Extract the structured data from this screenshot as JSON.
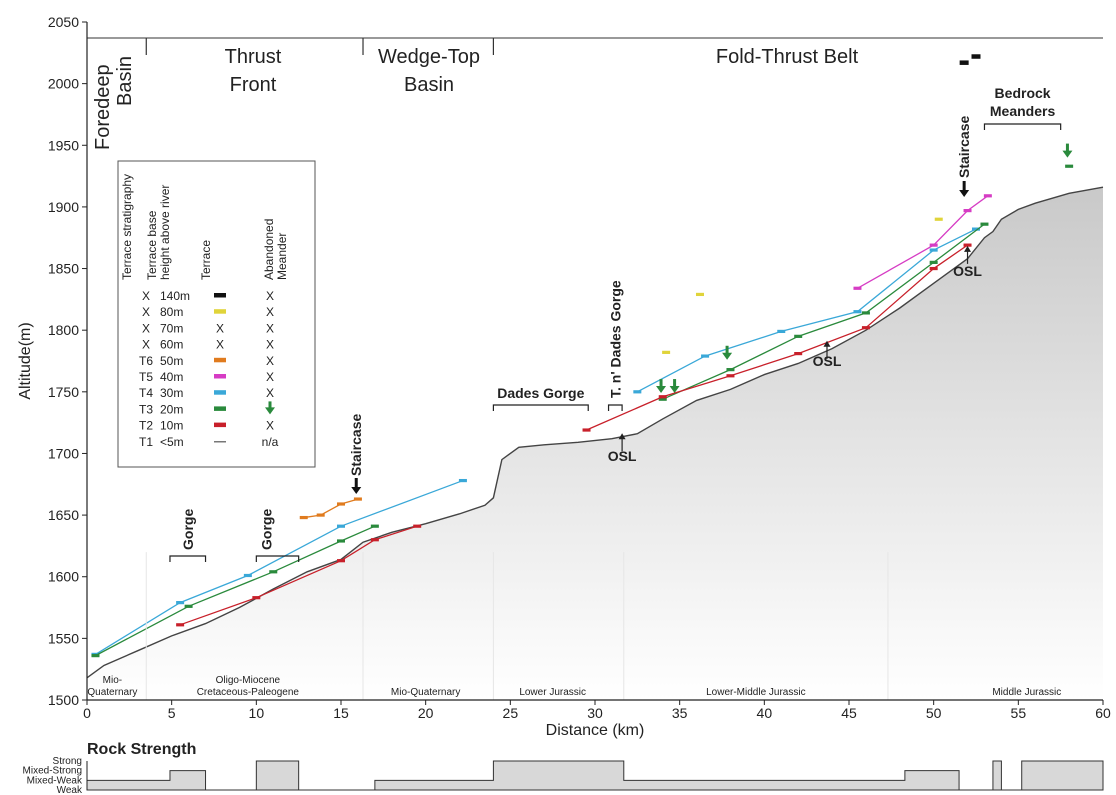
{
  "chart_data": {
    "type": "line",
    "xlabel": "Distance (km)",
    "ylabel": "Altitude(m)",
    "xlim": [
      0,
      60
    ],
    "ylim": [
      1500,
      2050
    ],
    "xticks": [
      0,
      5,
      10,
      15,
      20,
      25,
      30,
      35,
      40,
      45,
      50,
      55,
      60
    ],
    "yticks": [
      1500,
      1550,
      1600,
      1650,
      1700,
      1750,
      1800,
      1850,
      1900,
      1950,
      2000,
      2050
    ],
    "colors": {
      "T6": "#e07b1e",
      "T5": "#d63cc4",
      "T4": "#3aa8d8",
      "T3": "#2a8a3c",
      "T2": "#c8202a",
      "T1": "#555555",
      "80m": "#e0d43a",
      "140m": "#111111",
      "profile": "#444444",
      "fill": "#d6d6d6"
    },
    "regions": [
      {
        "label": "Foredeep Basin",
        "from": 0,
        "to": 3.5
      },
      {
        "label": "Thrust Front",
        "from": 3.5,
        "to": 16.3
      },
      {
        "label": "Wedge-Top Basin",
        "from": 16.3,
        "to": 24
      },
      {
        "label": "Fold-Thrust Belt",
        "from": 24,
        "to": 60
      }
    ],
    "annotations": {
      "gorge1": "Gorge",
      "gorge2": "Gorge",
      "staircase1": "Staircase",
      "staircase2": "Staircase",
      "dades": "Dades Gorge",
      "tndades": "T. n' Dades Gorge",
      "bedrock": "Bedrock Meanders",
      "osl": "OSL"
    },
    "geology": [
      {
        "label1": "Mio-",
        "label2": "Quaternary",
        "x": 1.5
      },
      {
        "label1": "Oligo-Miocene",
        "label2": "Cretaceous-Paleogene",
        "x": 9.5
      },
      {
        "label1": "Mio-Quaternary",
        "label2": "",
        "x": 20
      },
      {
        "label1": "Lower Jurassic",
        "label2": "",
        "x": 27.5
      },
      {
        "label1": "Lower-Middle Jurassic",
        "label2": "",
        "x": 39.5
      },
      {
        "label1": "Middle Jurassic",
        "label2": "",
        "x": 55.5
      }
    ],
    "legend": {
      "headers": [
        "Terrace stratigraphy",
        "Terrace base height above river",
        "Terrace",
        "Abandoned Meander"
      ],
      "rows": [
        {
          "strat": "X",
          "height": "140m",
          "terrace": "swatch",
          "color": "#111111",
          "meander": "X"
        },
        {
          "strat": "X",
          "height": "80m",
          "terrace": "swatch",
          "color": "#e0d43a",
          "meander": "X"
        },
        {
          "strat": "X",
          "height": "70m",
          "terrace": "X",
          "color": "",
          "meander": "X"
        },
        {
          "strat": "X",
          "height": "60m",
          "terrace": "X",
          "color": "",
          "meander": "X"
        },
        {
          "strat": "T6",
          "height": "50m",
          "terrace": "swatch",
          "color": "#e07b1e",
          "meander": "X"
        },
        {
          "strat": "T5",
          "height": "40m",
          "terrace": "swatch",
          "color": "#d63cc4",
          "meander": "X"
        },
        {
          "strat": "T4",
          "height": "30m",
          "terrace": "swatch",
          "color": "#3aa8d8",
          "meander": "X"
        },
        {
          "strat": "T3",
          "height": "20m",
          "terrace": "swatch",
          "color": "#2a8a3c",
          "meander": "arrow"
        },
        {
          "strat": "T2",
          "height": "10m",
          "terrace": "swatch",
          "color": "#c8202a",
          "meander": "X"
        },
        {
          "strat": "T1",
          "height": "<5m",
          "terrace": "line",
          "color": "#555555",
          "meander": "n/a"
        }
      ]
    },
    "profile": [
      [
        0,
        1518
      ],
      [
        1,
        1528
      ],
      [
        3,
        1540
      ],
      [
        5,
        1552
      ],
      [
        7,
        1562
      ],
      [
        9,
        1575
      ],
      [
        11,
        1590
      ],
      [
        13,
        1604
      ],
      [
        15,
        1614
      ],
      [
        16.3,
        1628
      ],
      [
        18,
        1636
      ],
      [
        20,
        1643
      ],
      [
        22,
        1651
      ],
      [
        23.5,
        1658
      ],
      [
        24,
        1664
      ],
      [
        24.5,
        1695
      ],
      [
        25.5,
        1705
      ],
      [
        27,
        1707
      ],
      [
        29,
        1709
      ],
      [
        31,
        1712
      ],
      [
        32.5,
        1716
      ],
      [
        34,
        1728
      ],
      [
        36,
        1743
      ],
      [
        38,
        1752
      ],
      [
        40,
        1764
      ],
      [
        42,
        1773
      ],
      [
        44,
        1785
      ],
      [
        46,
        1800
      ],
      [
        48,
        1818
      ],
      [
        50,
        1838
      ],
      [
        52,
        1858
      ],
      [
        53,
        1875
      ],
      [
        53.5,
        1880
      ],
      [
        54,
        1890
      ],
      [
        55,
        1898
      ],
      [
        56,
        1903
      ],
      [
        58,
        1911
      ],
      [
        60,
        1916
      ]
    ],
    "terrace_lines": [
      {
        "name": "T4",
        "points": [
          [
            0.5,
            1537
          ],
          [
            5.5,
            1579
          ],
          [
            9.5,
            1601
          ],
          [
            15,
            1641
          ],
          [
            22.2,
            1678
          ]
        ]
      },
      {
        "name": "T4",
        "points": [
          [
            32.5,
            1750
          ],
          [
            36.5,
            1779
          ],
          [
            41,
            1799
          ],
          [
            45.5,
            1815
          ],
          [
            50,
            1865
          ],
          [
            52.5,
            1882
          ]
        ]
      },
      {
        "name": "T3",
        "points": [
          [
            0.5,
            1536
          ],
          [
            6,
            1576
          ],
          [
            11,
            1604
          ],
          [
            15,
            1629
          ],
          [
            17,
            1641
          ]
        ]
      },
      {
        "name": "T3",
        "points": [
          [
            34,
            1744
          ],
          [
            38,
            1768
          ],
          [
            42,
            1795
          ],
          [
            46,
            1814
          ],
          [
            50,
            1855
          ],
          [
            53,
            1886
          ]
        ]
      },
      {
        "name": "T2",
        "points": [
          [
            5.5,
            1561
          ],
          [
            10,
            1583
          ],
          [
            15,
            1613
          ],
          [
            17,
            1630
          ],
          [
            19.5,
            1641
          ]
        ]
      },
      {
        "name": "T2",
        "points": [
          [
            29.5,
            1719
          ],
          [
            34,
            1746
          ],
          [
            38,
            1763
          ],
          [
            42,
            1781
          ],
          [
            46,
            1802
          ],
          [
            50,
            1850
          ],
          [
            52,
            1869
          ]
        ]
      },
      {
        "name": "T6",
        "points": [
          [
            12.8,
            1648
          ],
          [
            13.8,
            1650
          ],
          [
            15,
            1659
          ],
          [
            16,
            1663
          ]
        ]
      },
      {
        "name": "T5",
        "points": [
          [
            45.5,
            1834
          ],
          [
            50,
            1869
          ],
          [
            52,
            1897
          ],
          [
            53.2,
            1909
          ]
        ]
      }
    ],
    "terrace_marks": [
      {
        "name": "140m",
        "x": 51.8,
        "y": 2017
      },
      {
        "name": "140m",
        "x": 52.5,
        "y": 2022
      },
      {
        "name": "80m",
        "x": 50.3,
        "y": 1890
      },
      {
        "name": "80m",
        "x": 36.2,
        "y": 1829
      },
      {
        "name": "80m",
        "x": 34.2,
        "y": 1782
      },
      {
        "name": "T3",
        "x": 58,
        "y": 1933
      }
    ],
    "meander_arrows": [
      {
        "x": 33.9,
        "y": 1749
      },
      {
        "x": 34.7,
        "y": 1749
      },
      {
        "x": 37.8,
        "y": 1776
      },
      {
        "x": 57.9,
        "y": 1940
      }
    ],
    "rock_strength": {
      "title": "Rock Strength",
      "levels": [
        "Strong",
        "Mixed-Strong",
        "Mixed-Weak",
        "Weak"
      ],
      "steps": [
        [
          0,
          1
        ],
        [
          4.9,
          2
        ],
        [
          7,
          0
        ],
        [
          10,
          3
        ],
        [
          12.5,
          0
        ],
        [
          17,
          1
        ],
        [
          24,
          3
        ],
        [
          31.7,
          1
        ],
        [
          48.3,
          2
        ],
        [
          51.5,
          0
        ],
        [
          53.5,
          3
        ],
        [
          54,
          0
        ],
        [
          55.2,
          3
        ],
        [
          60,
          3
        ]
      ]
    }
  }
}
